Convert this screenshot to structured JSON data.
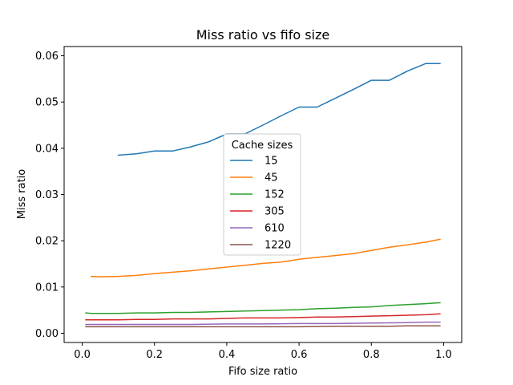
{
  "chart_data": {
    "type": "line",
    "title": "Miss ratio vs fifo size",
    "xlabel": "Fifo size ratio",
    "ylabel": "Miss ratio",
    "xlim": [
      -0.05,
      1.05
    ],
    "ylim": [
      -0.002,
      0.062
    ],
    "xticks": [
      0.0,
      0.2,
      0.4,
      0.6,
      0.8,
      1.0
    ],
    "xtick_labels": [
      "0.0",
      "0.2",
      "0.4",
      "0.6",
      "0.8",
      "1.0"
    ],
    "yticks": [
      0.0,
      0.01,
      0.02,
      0.03,
      0.04,
      0.05,
      0.06
    ],
    "ytick_labels": [
      "0.00",
      "0.01",
      "0.02",
      "0.03",
      "0.04",
      "0.05",
      "0.06"
    ],
    "grid": false,
    "legend": {
      "title": "Cache sizes",
      "placement": "center"
    },
    "series": [
      {
        "name": "15",
        "color": "#1f77b4",
        "x": [
          0.1,
          0.15,
          0.2,
          0.25,
          0.3,
          0.35,
          0.4,
          0.45,
          0.5,
          0.55,
          0.6,
          0.65,
          0.7,
          0.75,
          0.8,
          0.85,
          0.9,
          0.95,
          0.99
        ],
        "y": [
          0.0385,
          0.0388,
          0.0394,
          0.0394,
          0.0403,
          0.0414,
          0.0431,
          0.0431,
          0.045,
          0.047,
          0.0489,
          0.0489,
          0.0508,
          0.0527,
          0.0547,
          0.0547,
          0.0567,
          0.0583,
          0.0583
        ]
      },
      {
        "name": "45",
        "color": "#ff7f0e",
        "x": [
          0.025,
          0.05,
          0.1,
          0.15,
          0.2,
          0.25,
          0.3,
          0.35,
          0.4,
          0.45,
          0.5,
          0.55,
          0.6,
          0.65,
          0.7,
          0.75,
          0.8,
          0.85,
          0.9,
          0.95,
          0.99
        ],
        "y": [
          0.0123,
          0.0122,
          0.0123,
          0.0125,
          0.0129,
          0.0132,
          0.0135,
          0.0139,
          0.0143,
          0.0147,
          0.0151,
          0.0154,
          0.016,
          0.0164,
          0.0168,
          0.0172,
          0.0179,
          0.0186,
          0.0191,
          0.0197,
          0.0203
        ]
      },
      {
        "name": "152",
        "color": "#2ca02c",
        "x": [
          0.01,
          0.025,
          0.05,
          0.1,
          0.15,
          0.2,
          0.25,
          0.3,
          0.35,
          0.4,
          0.45,
          0.5,
          0.55,
          0.6,
          0.65,
          0.7,
          0.75,
          0.8,
          0.85,
          0.9,
          0.95,
          0.99
        ],
        "y": [
          0.0044,
          0.0043,
          0.0043,
          0.0043,
          0.0044,
          0.0044,
          0.0045,
          0.0045,
          0.0046,
          0.0047,
          0.0048,
          0.0049,
          0.005,
          0.0051,
          0.0053,
          0.0054,
          0.0056,
          0.0057,
          0.006,
          0.0062,
          0.0064,
          0.0066
        ]
      },
      {
        "name": "305",
        "color": "#d62728",
        "x": [
          0.01,
          0.05,
          0.1,
          0.15,
          0.2,
          0.25,
          0.3,
          0.35,
          0.4,
          0.45,
          0.5,
          0.55,
          0.6,
          0.65,
          0.7,
          0.75,
          0.8,
          0.85,
          0.9,
          0.95,
          0.99
        ],
        "y": [
          0.0029,
          0.0029,
          0.0029,
          0.003,
          0.003,
          0.0031,
          0.0031,
          0.0031,
          0.0032,
          0.0033,
          0.0033,
          0.0033,
          0.0034,
          0.0035,
          0.0035,
          0.0036,
          0.0037,
          0.0038,
          0.0039,
          0.004,
          0.0042
        ]
      },
      {
        "name": "610",
        "color": "#9467bd",
        "x": [
          0.01,
          0.1,
          0.2,
          0.3,
          0.4,
          0.5,
          0.6,
          0.7,
          0.8,
          0.9,
          0.95,
          0.99
        ],
        "y": [
          0.0019,
          0.0019,
          0.0019,
          0.0019,
          0.002,
          0.002,
          0.0021,
          0.0021,
          0.0022,
          0.0023,
          0.0024,
          0.0024
        ]
      },
      {
        "name": "1220",
        "color": "#8c564b",
        "x": [
          0.01,
          0.1,
          0.2,
          0.3,
          0.4,
          0.5,
          0.6,
          0.7,
          0.8,
          0.85,
          0.9,
          0.95,
          0.99
        ],
        "y": [
          0.0014,
          0.0014,
          0.0014,
          0.0014,
          0.0014,
          0.0014,
          0.0014,
          0.0015,
          0.0015,
          0.0015,
          0.0016,
          0.0016,
          0.0016
        ]
      }
    ]
  }
}
